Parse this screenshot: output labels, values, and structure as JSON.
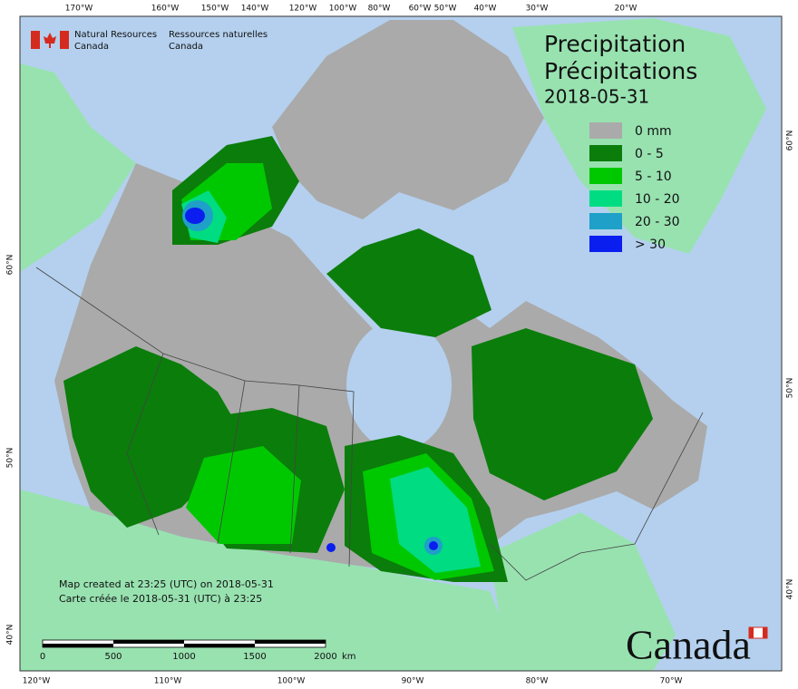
{
  "header": {
    "agency_en": [
      "Natural Resources",
      "Canada"
    ],
    "agency_fr": [
      "Ressources naturelles",
      "Canada"
    ]
  },
  "title": {
    "en": "Precipitation",
    "fr": "Précipitations",
    "date": "2018-05-31"
  },
  "legend": [
    {
      "label": "0 mm",
      "color": "#aaaaaa"
    },
    {
      "label": "0 - 5",
      "color": "#0b7d0b"
    },
    {
      "label": "5 - 10",
      "color": "#00c800"
    },
    {
      "label": "10 - 20",
      "color": "#00dc82"
    },
    {
      "label": "20 - 30",
      "color": "#1ea0c8"
    },
    {
      "label": "> 30",
      "color": "#0a1ef0"
    }
  ],
  "graticule": {
    "top": [
      "170°W",
      "160°W",
      "150°W",
      "140°W",
      "120°W",
      "100°W",
      "80°W",
      "60°W",
      "50°W",
      "40°W",
      "30°W",
      "20°W"
    ],
    "bottom": [
      "120°W",
      "110°W",
      "100°W",
      "90°W",
      "80°W",
      "70°W"
    ],
    "left": [
      "40°N",
      "50°N",
      "60°N"
    ],
    "right": [
      "40°N",
      "50°N",
      "60°N"
    ]
  },
  "credits": [
    "Map created at 23:25 (UTC) on 2018-05-31",
    "Carte créée le 2018-05-31 (UTC) à 23:25"
  ],
  "scale": {
    "ticks": [
      "0",
      "500",
      "1000",
      "1500",
      "2000"
    ],
    "unit": "km"
  },
  "wordmark": "Canada"
}
